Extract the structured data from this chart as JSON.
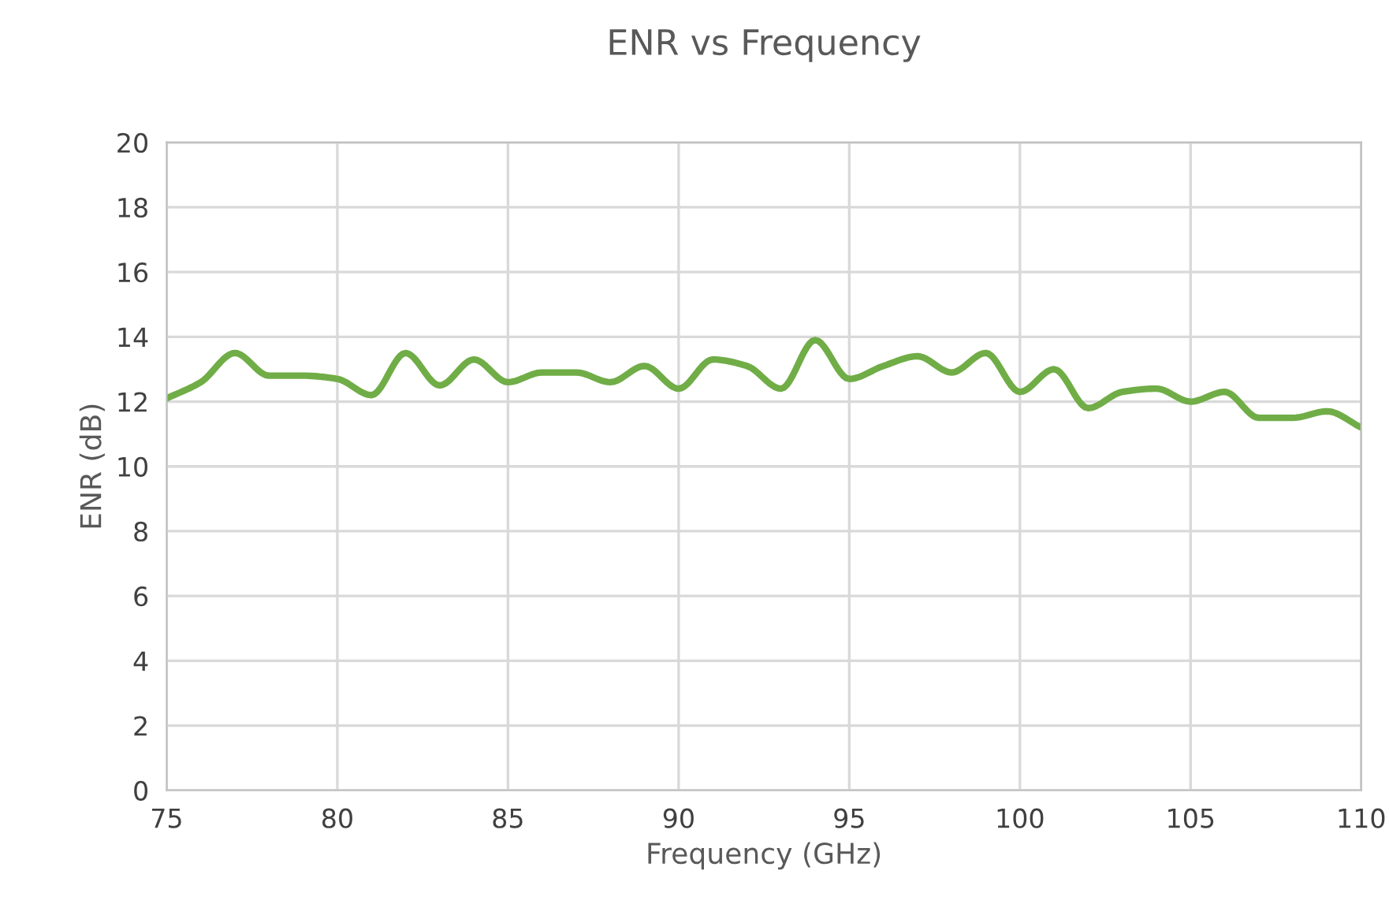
{
  "chart_data": {
    "type": "line",
    "title": "ENR vs Frequency",
    "xlabel": "Frequency (GHz)",
    "ylabel": "ENR (dB)",
    "x": [
      75,
      76,
      77,
      78,
      79,
      80,
      81,
      82,
      83,
      84,
      85,
      86,
      87,
      88,
      89,
      90,
      91,
      92,
      93,
      94,
      95,
      96,
      97,
      98,
      99,
      100,
      101,
      102,
      103,
      104,
      105,
      106,
      107,
      108,
      109,
      110
    ],
    "series": [
      {
        "color": "#70ad47",
        "values": [
          12.1,
          12.6,
          13.5,
          12.8,
          12.8,
          12.7,
          12.2,
          13.5,
          12.5,
          13.3,
          12.6,
          12.9,
          12.9,
          12.6,
          13.1,
          12.4,
          13.3,
          13.1,
          12.4,
          13.9,
          12.7,
          13.1,
          13.4,
          12.9,
          13.5,
          12.3,
          13.0,
          11.8,
          12.3,
          12.4,
          12.0,
          12.3,
          11.5,
          11.5,
          11.7,
          11.2
        ]
      }
    ],
    "xlim": [
      75,
      110
    ],
    "xticks": [
      75,
      80,
      85,
      90,
      95,
      100,
      105,
      110
    ],
    "ylim": [
      0,
      20
    ],
    "yticks": [
      0,
      2,
      4,
      6,
      8,
      10,
      12,
      14,
      16,
      18,
      20
    ],
    "grid": true,
    "legend": false,
    "marker": "none",
    "line_style": "solid"
  }
}
